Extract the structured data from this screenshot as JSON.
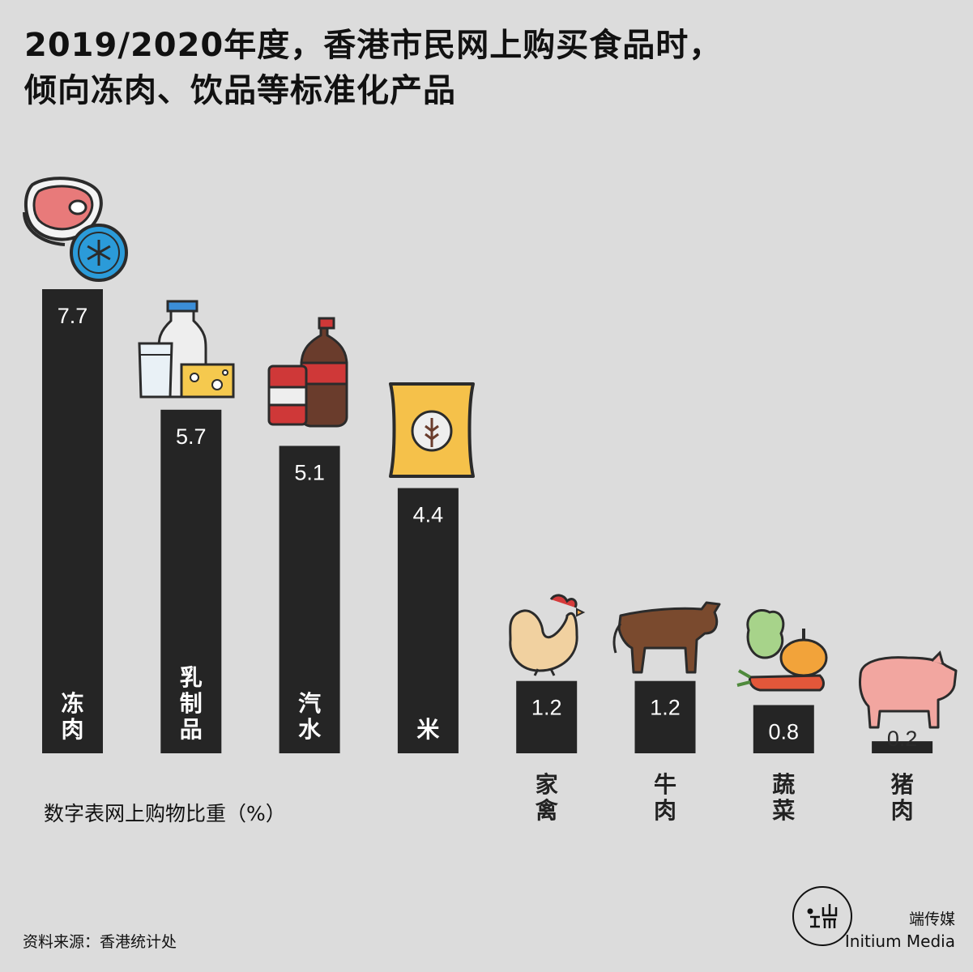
{
  "title": {
    "line1": "2019/2020年度，香港市民网上购买食品时，",
    "line2": "倾向冻肉、饮品等标准化产品"
  },
  "note": "数字表网上购物比重（%）",
  "source": "资料来源：香港统计处",
  "brand": {
    "cn": "端传媒",
    "en": "Initium Media"
  },
  "colors": {
    "background": "#dcdcdc",
    "bar": "#252525",
    "text_on_bar": "#ffffff"
  },
  "chart_data": {
    "type": "bar",
    "unit": "%",
    "ylim": [
      0,
      7.7
    ],
    "grid": false,
    "categories": [
      "冻肉",
      "乳制品",
      "汽水",
      "米",
      "家禽",
      "牛肉",
      "蔬菜",
      "猪肉"
    ],
    "values": [
      7.7,
      5.7,
      5.1,
      4.4,
      1.2,
      1.2,
      0.8,
      0.2
    ],
    "value_labels": [
      "7.7",
      "5.7",
      "5.1",
      "4.4",
      "1.2",
      "1.2",
      "0.8",
      "0.2"
    ],
    "icons": [
      "frozen-meat-icon",
      "dairy-icon",
      "soft-drink-icon",
      "rice-bag-icon",
      "chicken-icon",
      "cow-icon",
      "vegetables-icon",
      "pig-icon"
    ]
  }
}
